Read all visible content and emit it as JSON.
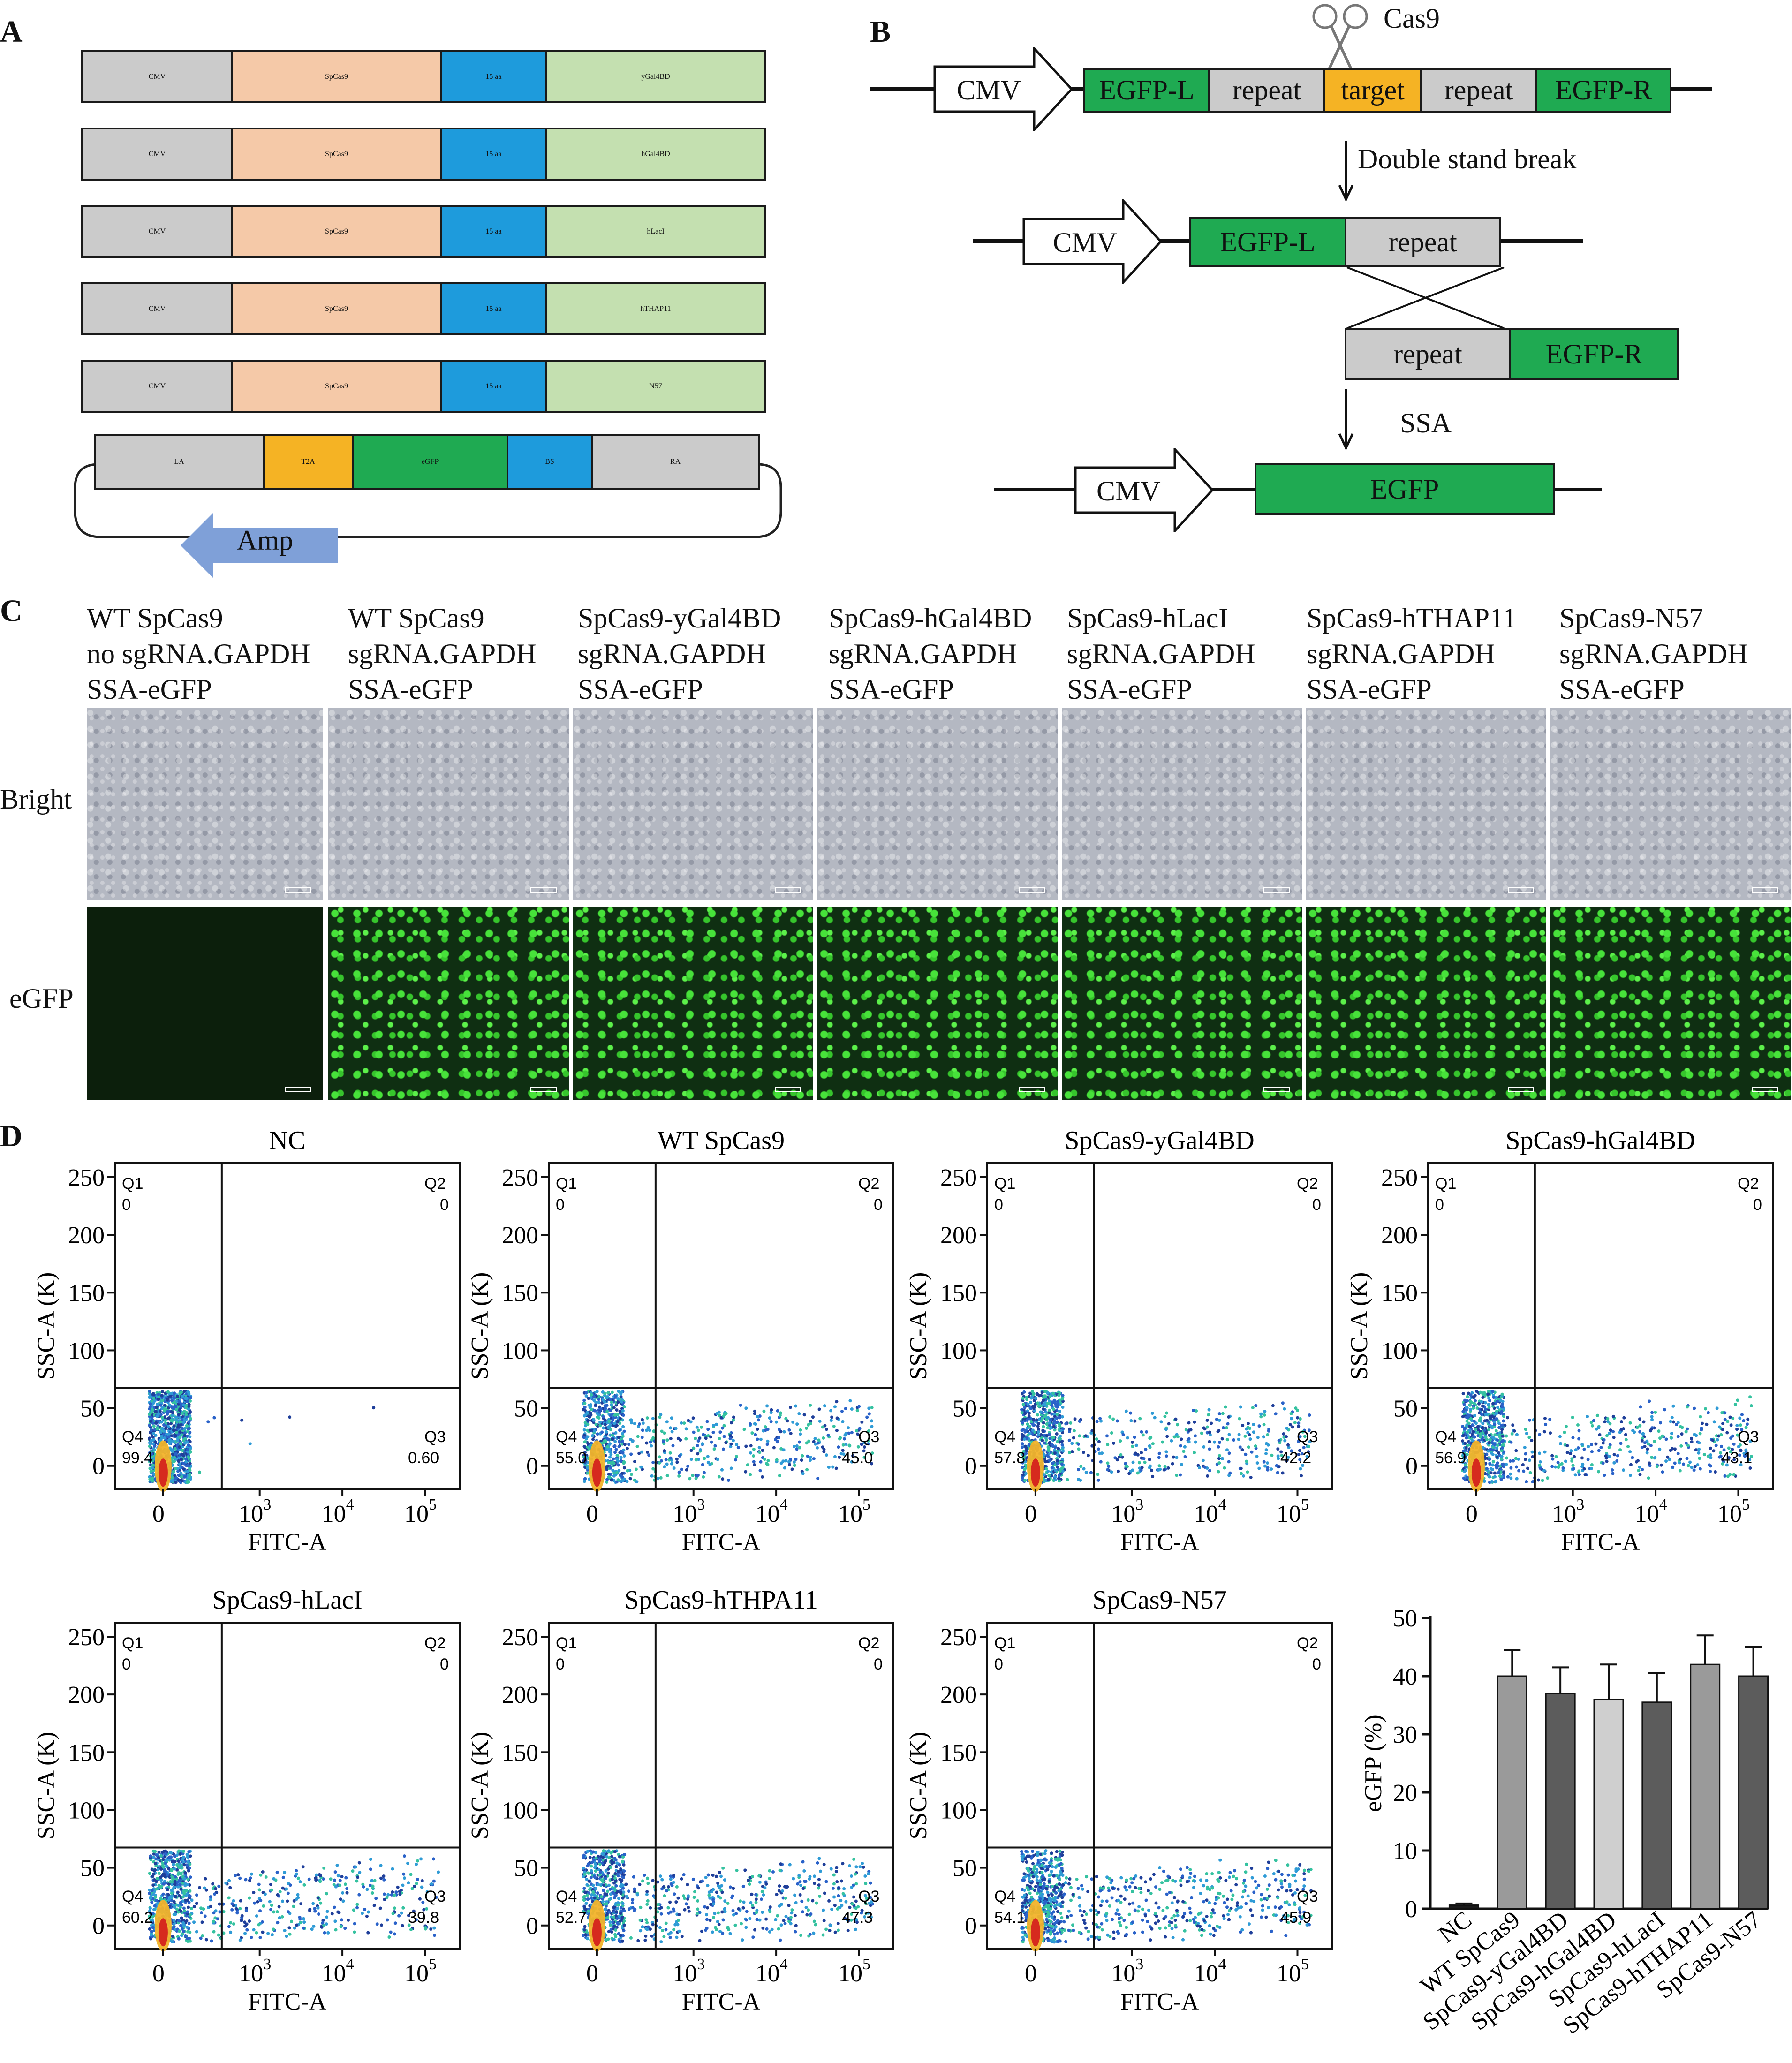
{
  "panels": {
    "a": "A",
    "b": "B",
    "c": "C",
    "d": "D"
  },
  "panelA": {
    "rows": [
      {
        "promoter": "CMV",
        "cas": "SpCas9",
        "linker": "15 aa",
        "fusion": "yGal4BD"
      },
      {
        "promoter": "CMV",
        "cas": "SpCas9",
        "linker": "15 aa",
        "fusion": "hGal4BD"
      },
      {
        "promoter": "CMV",
        "cas": "SpCas9",
        "linker": "15 aa",
        "fusion": "hLacI"
      },
      {
        "promoter": "CMV",
        "cas": "SpCas9",
        "linker": "15 aa",
        "fusion": "hTHAP11"
      },
      {
        "promoter": "CMV",
        "cas": "SpCas9",
        "linker": "15 aa",
        "fusion": "N57"
      }
    ],
    "donor": {
      "la": "LA",
      "t2a": "T2A",
      "egfp": "eGFP",
      "bs": "BS",
      "ra": "RA",
      "amp": "Amp"
    }
  },
  "panelB": {
    "cas9": "Cas9",
    "cmv": "CMV",
    "egfp_l": "EGFP-L",
    "repeat": "repeat",
    "target": "target",
    "egfp_r": "EGFP-R",
    "dsb": "Double stand break",
    "ssa": "SSA",
    "egfp": "EGFP"
  },
  "panelC": {
    "columns": [
      {
        "line1": "WT SpCas9",
        "line2": "no sgRNA.GAPDH",
        "line3": "SSA-eGFP"
      },
      {
        "line1": "WT SpCas9",
        "line2": "sgRNA.GAPDH",
        "line3": "SSA-eGFP"
      },
      {
        "line1": "SpCas9-yGal4BD",
        "line2": "sgRNA.GAPDH",
        "line3": "SSA-eGFP"
      },
      {
        "line1": "SpCas9-hGal4BD",
        "line2": "sgRNA.GAPDH",
        "line3": "SSA-eGFP"
      },
      {
        "line1": "SpCas9-hLacI",
        "line2": "sgRNA.GAPDH",
        "line3": "SSA-eGFP"
      },
      {
        "line1": "SpCas9-hTHAP11",
        "line2": "sgRNA.GAPDH",
        "line3": "SSA-eGFP"
      },
      {
        "line1": "SpCas9-N57",
        "line2": "sgRNA.GAPDH",
        "line3": "SSA-eGFP"
      }
    ],
    "row_bright": "Bright",
    "row_egfp": "eGFP"
  },
  "flow": {
    "xlabel": "FITC-A",
    "ylabel": "SSC-A (K)",
    "yticks": [
      "250",
      "200",
      "150",
      "100",
      "50",
      "0"
    ],
    "xticks": [
      "0",
      "10",
      "10",
      "10"
    ],
    "xexps": [
      "3",
      "4",
      "5"
    ],
    "q1": "Q1",
    "q2": "Q2",
    "q3": "Q3",
    "q4": "Q4",
    "zero": "0",
    "plots": [
      {
        "title": "NC",
        "q4": "99.4",
        "q3": "0.60"
      },
      {
        "title": "WT SpCas9",
        "q4": "55.0",
        "q3": "45.0"
      },
      {
        "title": "SpCas9-yGal4BD",
        "q4": "57.8",
        "q3": "42.2"
      },
      {
        "title": "SpCas9-hGal4BD",
        "q4": "56.9",
        "q3": "43.1"
      },
      {
        "title": "SpCas9-hLacI",
        "q4": "60.2",
        "q3": "39.8"
      },
      {
        "title": "SpCas9-hTHPA11",
        "q4": "52.7",
        "q3": "47.3"
      },
      {
        "title": "SpCas9-N57",
        "q4": "54.1",
        "q3": "45.9"
      }
    ]
  },
  "chart_data": {
    "type": "bar",
    "title": "",
    "xlabel": "",
    "ylabel": "eGFP (%)",
    "ylim": [
      0,
      50
    ],
    "yticks": [
      "0",
      "10",
      "20",
      "30",
      "40",
      "50"
    ],
    "categories": [
      "NC",
      "WT SpCas9",
      "SpCas9-yGal4BD",
      "SpCas9-hGal4BD",
      "SpCas9-hLacI",
      "SpCas9-hTHAP11",
      "SpCas9-N57"
    ],
    "values": [
      0.6,
      40.0,
      37.0,
      36.0,
      35.5,
      42.0,
      40.0
    ],
    "errors": [
      0.3,
      4.5,
      4.5,
      6.0,
      5.0,
      5.0,
      5.0
    ],
    "colors": [
      "#1a1a1a",
      "#9a9a9a",
      "#5c5c5c",
      "#cfcfcf",
      "#5c5c5c",
      "#9a9a9a",
      "#5c5c5c"
    ]
  }
}
